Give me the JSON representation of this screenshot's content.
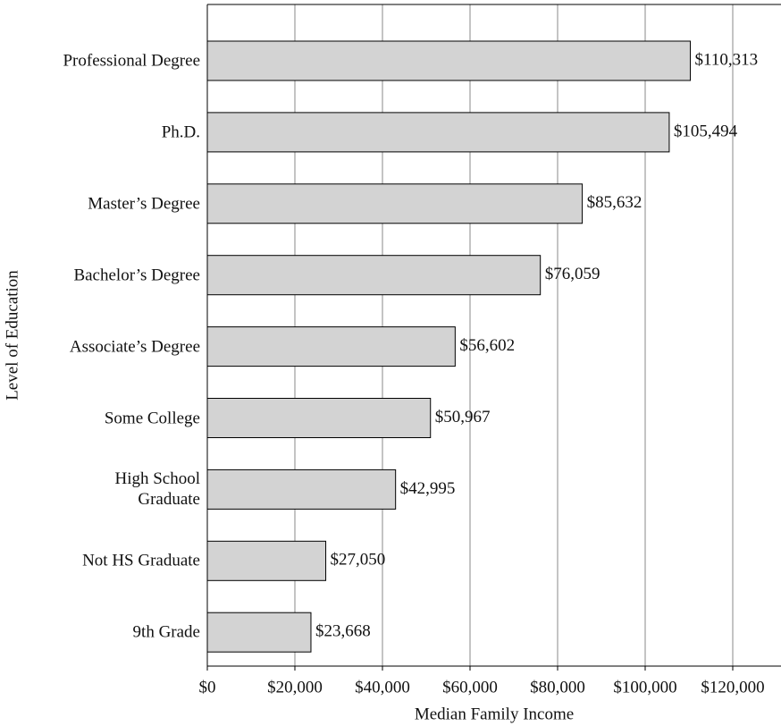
{
  "chart_data": {
    "type": "bar",
    "orientation": "horizontal",
    "categories": [
      "Professional Degree",
      "Ph.D.",
      "Master’s Degree",
      "Bachelor’s Degree",
      "Associate’s Degree",
      "Some College",
      "High School\nGraduate",
      "Not HS Graduate",
      "9th Grade"
    ],
    "values": [
      110313,
      105494,
      85632,
      76059,
      56602,
      50967,
      42995,
      27050,
      23668
    ],
    "value_labels": [
      "$110,313",
      "$105,494",
      "$85,632",
      "$76,059",
      "$56,602",
      "$50,967",
      "$42,995",
      "$27,050",
      "$23,668"
    ],
    "color": "#d3d3d3",
    "xlim": [
      0,
      130000
    ],
    "xticks": [
      {
        "value": 0,
        "label": "$0"
      },
      {
        "value": 20000,
        "label": "$20,000"
      },
      {
        "value": 40000,
        "label": "$40,000"
      },
      {
        "value": 60000,
        "label": "$60,000"
      },
      {
        "value": 80000,
        "label": "$80,000"
      },
      {
        "value": 100000,
        "label": "$100,000"
      },
      {
        "value": 120000,
        "label": "$120,000"
      }
    ],
    "xlabel": "Median Family Income",
    "ylabel": "Level of Education",
    "grid": true
  }
}
